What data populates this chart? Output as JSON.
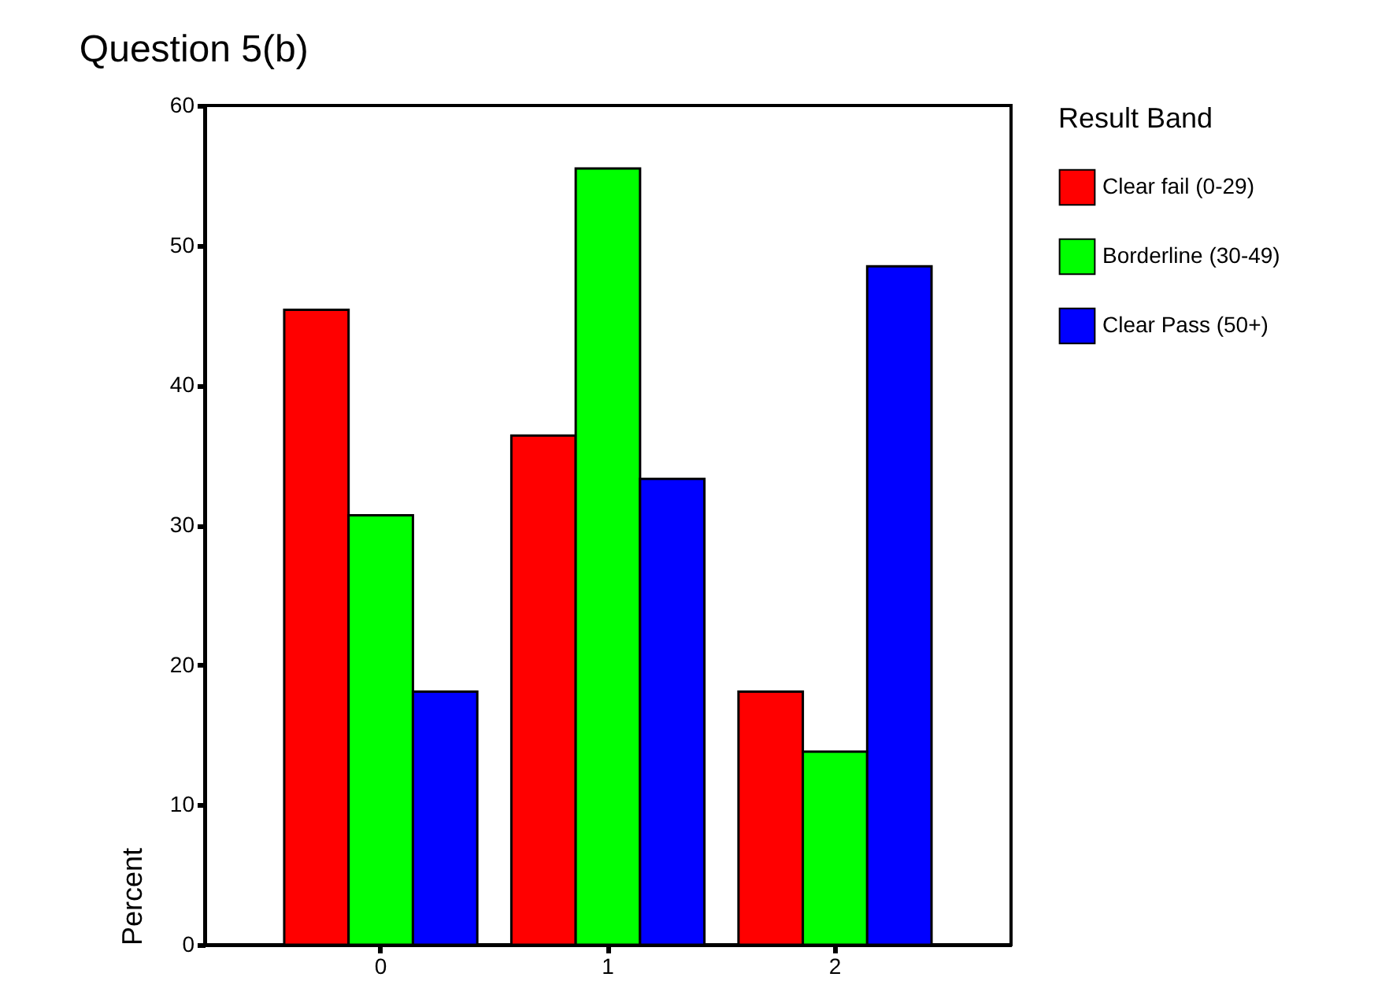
{
  "chart_data": {
    "type": "bar",
    "title": "Question 5(b)",
    "ylabel": "Percent",
    "legend_title": "Result Band",
    "categories": [
      "0",
      "1",
      "2"
    ],
    "series": [
      {
        "name": "Clear fail (0-29)",
        "color": "#ff0000",
        "values": [
          45.4,
          36.4,
          18.1
        ]
      },
      {
        "name": "Borderline (30-49)",
        "color": "#00ff00",
        "values": [
          30.7,
          55.5,
          13.8
        ]
      },
      {
        "name": "Clear Pass (50+)",
        "color": "#0000ff",
        "values": [
          18.1,
          33.3,
          48.5
        ]
      }
    ],
    "ylim": [
      0,
      60
    ],
    "yticks": [
      0,
      10,
      20,
      30,
      40,
      50,
      60
    ],
    "grid": false,
    "legend": "right"
  }
}
